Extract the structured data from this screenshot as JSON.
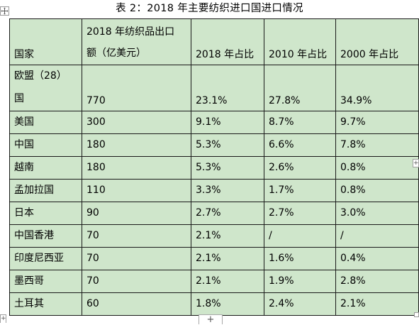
{
  "caption": "表 2：2018 年主要纺织进口国进口情况",
  "table": {
    "header": {
      "col1": "国家",
      "col2_line1": "2018 年纺织品出口",
      "col2_line2": "额（亿美元）",
      "col3": "2018 年占比",
      "col4": "2010 年占比",
      "col5": "2000 年占比"
    },
    "first_row": {
      "country_line1": "欧盟（28）",
      "country_line2": "国",
      "amount": "770",
      "share_2018": "23.1%",
      "share_2010": "27.8%",
      "share_2000": "34.9%"
    },
    "rows": [
      {
        "country": "美国",
        "amount": "300",
        "share_2018": "9.1%",
        "share_2010": "8.7%",
        "share_2000": "9.7%"
      },
      {
        "country": "中国",
        "amount": "180",
        "share_2018": "5.3%",
        "share_2010": "6.6%",
        "share_2000": "7.8%"
      },
      {
        "country": "越南",
        "amount": "180",
        "share_2018": "5.3%",
        "share_2010": "2.6%",
        "share_2000": "0.8%"
      },
      {
        "country": "孟加拉国",
        "amount": "110",
        "share_2018": "3.3%",
        "share_2010": "1.7%",
        "share_2000": "0.8%"
      },
      {
        "country": "日本",
        "amount": "90",
        "share_2018": "2.7%",
        "share_2010": "2.7%",
        "share_2000": "3.0%"
      },
      {
        "country": "中国香港",
        "amount": "70",
        "share_2018": "2.1%",
        "share_2010": "/",
        "share_2000": "/"
      },
      {
        "country": "印度尼西亚",
        "amount": "70",
        "share_2018": "2.1%",
        "share_2010": "1.6%",
        "share_2000": "0.4%"
      },
      {
        "country": "墨西哥",
        "amount": "70",
        "share_2018": "2.1%",
        "share_2010": "1.9%",
        "share_2000": "2.8%"
      },
      {
        "country": "土耳其",
        "amount": "60",
        "share_2018": "1.8%",
        "share_2010": "2.4%",
        "share_2000": "2.1%"
      }
    ]
  },
  "controls": {
    "add_row_glyph": "+",
    "edge_marker_glyph": "+",
    "move_icon": "four-arrow-move-icon"
  }
}
